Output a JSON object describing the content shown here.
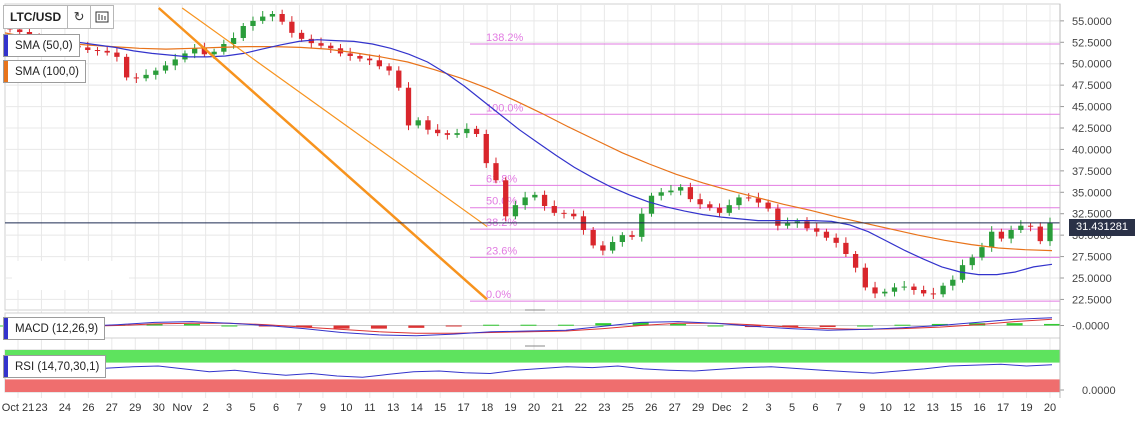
{
  "header": {
    "symbol": "LTC/USD",
    "refresh_icon": "refresh-icon",
    "indicators_icon": "indicators-icon"
  },
  "legend": {
    "sma50": {
      "label": "SMA (50,0)",
      "color": "#3333cc"
    },
    "sma100": {
      "label": "SMA (100,0)",
      "color": "#e8731a"
    },
    "macd": {
      "label": "MACD (12,26,9)",
      "color": "#3333cc"
    },
    "rsi": {
      "label": "RSI (14,70,30,1)",
      "color": "#3333cc"
    }
  },
  "current_price": "31.431281",
  "colors": {
    "up": "#2a9d3a",
    "down": "#d9262c",
    "trendline": "#f7931e",
    "fib": "#e27be2",
    "grid": "#e8e8e8",
    "rsi_over": "#5ee35e",
    "rsi_under": "#ef6e6e"
  },
  "chart_data": {
    "type": "candlestick",
    "title": "LTC/USD",
    "x_ticks": [
      "Oct 21",
      "23",
      "24",
      "26",
      "27",
      "29",
      "30",
      "Nov",
      "2",
      "3",
      "5",
      "6",
      "7",
      "9",
      "10",
      "11",
      "13",
      "14",
      "15",
      "17",
      "18",
      "19",
      "20",
      "21",
      "22",
      "23",
      "25",
      "26",
      "27",
      "29",
      "Dec",
      "2",
      "3",
      "5",
      "6",
      "7",
      "9",
      "10",
      "12",
      "13",
      "15",
      "16",
      "17",
      "19",
      "20"
    ],
    "y_ticks": [
      "55.0000",
      "52.5000",
      "50.0000",
      "47.5000",
      "45.0000",
      "42.5000",
      "40.0000",
      "37.5000",
      "35.0000",
      "32.5000",
      "30.0000",
      "27.5000",
      "25.0000",
      "22.5000"
    ],
    "ylim": [
      21.5,
      56.5
    ],
    "close_series": [
      54.0,
      53.7,
      53.2,
      52.9,
      52.6,
      52.4,
      52.1,
      51.9,
      51.6,
      51.5,
      51.3,
      50.8,
      48.4,
      48.3,
      48.7,
      49.2,
      49.8,
      50.5,
      51.2,
      51.8,
      51.1,
      51.4,
      52.3,
      53.0,
      54.4,
      55.0,
      55.5,
      55.8,
      54.9,
      53.6,
      52.9,
      52.4,
      52.1,
      51.8,
      51.2,
      50.9,
      50.6,
      50.4,
      49.7,
      49.2,
      47.2,
      42.8,
      43.4,
      42.3,
      41.9,
      41.7,
      41.9,
      42.4,
      41.8,
      38.4,
      36.4,
      32.2,
      33.5,
      34.4,
      34.7,
      33.4,
      32.6,
      32.5,
      32.2,
      30.6,
      28.8,
      28.2,
      29.2,
      30.0,
      29.8,
      32.5,
      34.6,
      35.0,
      35.2,
      35.6,
      34.2,
      33.6,
      33.2,
      32.6,
      33.5,
      34.4,
      34.3,
      33.8,
      33.1,
      31.1,
      31.4,
      31.6,
      30.8,
      30.4,
      29.7,
      29.1,
      27.8,
      26.2,
      23.9,
      23.2,
      23.4,
      23.9,
      24.0,
      23.6,
      23.2,
      23.1,
      24.1,
      24.8,
      26.5,
      27.4,
      28.6,
      30.4,
      29.6,
      30.6,
      31.1,
      31.0,
      29.3,
      31.4
    ],
    "series": [
      {
        "name": "SMA (50,0)",
        "type": "line",
        "values": [
          53.3,
          53.2,
          53.0,
          52.8,
          52.5,
          52.2,
          51.9,
          51.5,
          51.2,
          51.0,
          50.8,
          50.8,
          50.9,
          51.2,
          51.7,
          52.2,
          52.6,
          52.8,
          52.7,
          52.6,
          52.3,
          51.8,
          51.1,
          50.2,
          48.9,
          47.4,
          45.7,
          44.0,
          42.3,
          40.8,
          39.3,
          37.9,
          36.7,
          35.6,
          34.7,
          33.9,
          33.3,
          32.8,
          32.4,
          32.1,
          31.9,
          31.7,
          31.7,
          31.7,
          31.7,
          31.6,
          31.2,
          30.4,
          29.3,
          28.2,
          27.2,
          26.3,
          25.7,
          25.4,
          25.4,
          25.7,
          26.3,
          26.6
        ]
      },
      {
        "name": "SMA (100,0)",
        "type": "line",
        "values": [
          53.6,
          53.0,
          52.5,
          52.2,
          52.0,
          51.8,
          51.7,
          51.8,
          51.9,
          52.0,
          52.0,
          51.9,
          51.7,
          51.3,
          50.8,
          50.2,
          49.3,
          48.3,
          47.1,
          45.7,
          44.2,
          42.6,
          41.1,
          39.6,
          38.3,
          37.1,
          36.1,
          35.2,
          34.4,
          33.6,
          32.9,
          32.1,
          31.4,
          30.7,
          30.0,
          29.4,
          28.9,
          28.5,
          28.3,
          28.2
        ]
      }
    ],
    "trendlines": [
      {
        "from": [
          6,
          56.5
        ],
        "to": [
          20,
          22.5
        ]
      },
      {
        "from": [
          7,
          56.5
        ],
        "to": [
          20,
          31.0
        ]
      }
    ],
    "fibonacci": [
      {
        "label": "138.2%",
        "value": 52.3
      },
      {
        "label": "100.0%",
        "value": 44.1
      },
      {
        "label": "61.8%",
        "value": 35.8
      },
      {
        "label": "50.0%",
        "value": 33.2
      },
      {
        "label": "38.2%",
        "value": 30.7
      },
      {
        "label": "23.6%",
        "value": 27.4
      },
      {
        "label": "0.0%",
        "value": 22.3
      }
    ],
    "macd": {
      "label": "MACD (12,26,9)",
      "y_ticks": [
        "-0.0000"
      ],
      "macd_line": [
        -0.1,
        -0.2,
        -0.1,
        0.1,
        0.4,
        0.5,
        0.3,
        0.0,
        -0.4,
        -0.9,
        -1.2,
        -1.3,
        -1.1,
        -0.8,
        -0.7,
        -0.6,
        -0.1,
        0.4,
        0.5,
        0.3,
        -0.1,
        -0.4,
        -0.6,
        -0.5,
        -0.3,
        0.0,
        0.4,
        0.8,
        1.0
      ],
      "signal_line": [
        -0.1,
        -0.1,
        -0.1,
        0.0,
        0.2,
        0.3,
        0.3,
        0.1,
        -0.2,
        -0.5,
        -0.8,
        -1.0,
        -1.0,
        -0.9,
        -0.8,
        -0.7,
        -0.4,
        0.0,
        0.3,
        0.3,
        0.1,
        -0.2,
        -0.4,
        -0.5,
        -0.4,
        -0.2,
        0.1,
        0.5,
        0.8
      ]
    },
    "rsi": {
      "label": "RSI (14,70,30,1)",
      "y_ticks": [
        "0.0000"
      ],
      "values": [
        55,
        52,
        54,
        50,
        57,
        60,
        62,
        55,
        48,
        52,
        45,
        40,
        44,
        38,
        35,
        42,
        48,
        50,
        46,
        44,
        52,
        56,
        60,
        58,
        62,
        55,
        52,
        50,
        54,
        58,
        60,
        56,
        52,
        48,
        45,
        50,
        55,
        62,
        64,
        66,
        62,
        65
      ]
    }
  }
}
